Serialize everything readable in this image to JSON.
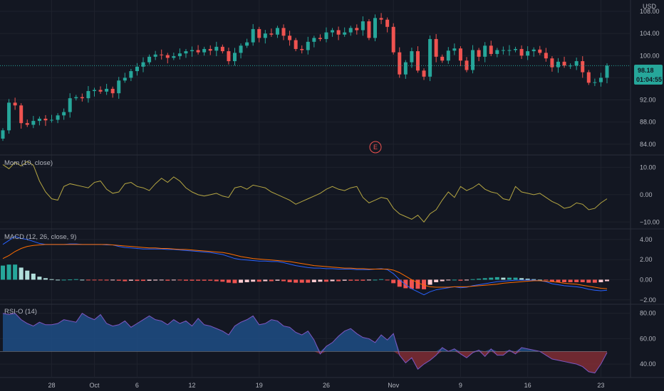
{
  "currency": "USD",
  "price_badge": {
    "price": "98.18",
    "countdown": "01:04:55",
    "color": "#26a69a"
  },
  "earnings_marker": "E",
  "colors": {
    "up": "#26a69a",
    "down": "#ef5350",
    "mom": "#b5a642",
    "macd": "#2962ff",
    "signal": "#ff6d00",
    "rsi_line": "#7e57c2",
    "rsi_up_fill": "#1e4a80",
    "rsi_down_fill": "#7a2b33"
  },
  "chart_data": [
    {
      "type": "candlestick",
      "name": "price",
      "y_ticks": [
        "108.00",
        "104.00",
        "100.00",
        "96.00",
        "92.00",
        "88.00",
        "84.00"
      ],
      "y_tick_values": [
        108,
        104,
        100,
        96,
        92,
        88,
        84
      ],
      "ylim": [
        82.3,
        109.8
      ],
      "last_price": 98.18,
      "x_ticks": [
        "28",
        "Oct",
        "6",
        "12",
        "19",
        "26",
        "Nov",
        "9",
        "16",
        "23"
      ],
      "x_tick_index": [
        8,
        15,
        22,
        31,
        42,
        53,
        64,
        75,
        86,
        98
      ],
      "closes": [
        86.5,
        91.5,
        91.0,
        87.8,
        87.5,
        88.2,
        88.6,
        88.3,
        88.4,
        89.2,
        89.8,
        92.3,
        92.5,
        92.3,
        93.6,
        93.8,
        93.5,
        94.0,
        93.2,
        95.5,
        96.0,
        97.2,
        98.0,
        98.8,
        99.8,
        100.2,
        100.1,
        99.6,
        99.9,
        100.4,
        100.8,
        101.0,
        100.6,
        101.2,
        100.9,
        101.6,
        100.8,
        99.0,
        100.5,
        101.8,
        102.4,
        104.8,
        103.2,
        104.0,
        103.8,
        105.0,
        103.6,
        102.8,
        101.2,
        101.0,
        102.5,
        103.2,
        103.0,
        104.2,
        104.6,
        103.8,
        104.2,
        105.0,
        104.6,
        106.2,
        103.2,
        106.8,
        106.5,
        105.2,
        100.6,
        96.6,
        98.8,
        100.8,
        97.3,
        96.2,
        103.0,
        99.8,
        99.1,
        100.9,
        101.3,
        99.1,
        97.4,
        101.0,
        99.8,
        101.8,
        100.3,
        101.0,
        101.0,
        101.0,
        101.2,
        100.0,
        100.8,
        101.1,
        100.5,
        99.5,
        97.9,
        98.9,
        98.2,
        98.2,
        99.0,
        97.0,
        95.1,
        95.2,
        96.0,
        98.2
      ]
    },
    {
      "type": "line",
      "name": "Mom (10, close)",
      "title": "Mom (10, close)",
      "y_ticks": [
        "10.00",
        "0.00",
        "−10.00"
      ],
      "y_tick_values": [
        10,
        0,
        -10
      ],
      "ylim": [
        -12,
        14
      ],
      "values": [
        11.0,
        9.5,
        11.8,
        10.5,
        12.2,
        10.8,
        5.0,
        1.0,
        -1.5,
        -2.0,
        3.0,
        4.0,
        3.5,
        3.0,
        2.5,
        4.5,
        5.0,
        2.0,
        0.5,
        1.0,
        4.0,
        4.5,
        3.0,
        2.5,
        1.5,
        4.0,
        6.0,
        4.5,
        6.5,
        5.0,
        2.5,
        1.0,
        0.0,
        -0.5,
        0.0,
        0.5,
        -0.5,
        -1.0,
        2.5,
        3.0,
        2.0,
        3.5,
        3.0,
        2.5,
        1.0,
        0.0,
        -1.0,
        -2.0,
        -3.5,
        -2.5,
        -1.5,
        -0.5,
        0.5,
        2.0,
        3.0,
        2.0,
        1.5,
        2.5,
        3.0,
        -1.0,
        -3.0,
        -2.0,
        -1.0,
        -1.5,
        -5.0,
        -7.0,
        -8.0,
        -9.0,
        -7.5,
        -10.0,
        -7.0,
        -5.5,
        -2.0,
        1.0,
        -1.0,
        3.0,
        1.5,
        2.5,
        4.0,
        2.0,
        1.0,
        0.5,
        -1.5,
        -2.0,
        3.0,
        1.0,
        0.5,
        0.0,
        0.5,
        -1.0,
        -2.5,
        -3.5,
        -5.0,
        -4.5,
        -3.0,
        -3.5,
        -5.5,
        -5.0,
        -3.0,
        -1.5
      ]
    },
    {
      "type": "line+histogram",
      "name": "MACD (12, 26, close, 9)",
      "title": "MACD (12, 26, close, 9)",
      "y_ticks": [
        "4.00",
        "2.00",
        "0.00",
        "−2.00"
      ],
      "y_tick_values": [
        4,
        2,
        0,
        -2
      ],
      "ylim": [
        -2.3,
        4.9
      ],
      "series": [
        {
          "name": "MACD",
          "values": [
            3.5,
            3.9,
            4.3,
            4.1,
            4.0,
            3.8,
            3.6,
            3.5,
            3.5,
            3.5,
            3.5,
            3.55,
            3.55,
            3.5,
            3.5,
            3.5,
            3.5,
            3.45,
            3.45,
            3.3,
            3.2,
            3.15,
            3.1,
            3.05,
            3.05,
            3.05,
            3.05,
            3.0,
            3.0,
            2.95,
            2.9,
            2.85,
            2.8,
            2.75,
            2.7,
            2.6,
            2.5,
            2.3,
            2.1,
            2.0,
            1.95,
            1.9,
            1.85,
            1.85,
            1.8,
            1.8,
            1.7,
            1.55,
            1.4,
            1.3,
            1.2,
            1.15,
            1.15,
            1.1,
            1.1,
            1.05,
            1.05,
            1.05,
            1.0,
            1.0,
            1.0,
            1.05,
            1.1,
            1.0,
            0.6,
            0.0,
            -0.5,
            -0.9,
            -1.2,
            -1.5,
            -1.2,
            -1.0,
            -0.9,
            -0.8,
            -0.7,
            -0.8,
            -0.75,
            -0.6,
            -0.5,
            -0.4,
            -0.3,
            -0.2,
            -0.15,
            -0.1,
            -0.05,
            -0.05,
            -0.05,
            -0.05,
            -0.1,
            -0.2,
            -0.4,
            -0.5,
            -0.6,
            -0.65,
            -0.7,
            -0.8,
            -0.95,
            -1.05,
            -1.1,
            -1.05
          ]
        },
        {
          "name": "Signal",
          "values": [
            2.1,
            2.4,
            2.8,
            3.1,
            3.3,
            3.4,
            3.45,
            3.5,
            3.5,
            3.5,
            3.5,
            3.5,
            3.5,
            3.5,
            3.5,
            3.5,
            3.5,
            3.5,
            3.45,
            3.4,
            3.35,
            3.3,
            3.25,
            3.2,
            3.15,
            3.15,
            3.1,
            3.1,
            3.05,
            3.0,
            3.0,
            2.95,
            2.9,
            2.85,
            2.8,
            2.75,
            2.7,
            2.6,
            2.45,
            2.3,
            2.2,
            2.1,
            2.05,
            2.0,
            1.95,
            1.9,
            1.85,
            1.8,
            1.7,
            1.6,
            1.5,
            1.4,
            1.35,
            1.3,
            1.25,
            1.2,
            1.15,
            1.15,
            1.1,
            1.1,
            1.05,
            1.05,
            1.05,
            1.05,
            0.95,
            0.7,
            0.35,
            0.0,
            -0.3,
            -0.55,
            -0.7,
            -0.75,
            -0.75,
            -0.75,
            -0.7,
            -0.7,
            -0.7,
            -0.65,
            -0.6,
            -0.55,
            -0.5,
            -0.45,
            -0.35,
            -0.3,
            -0.25,
            -0.2,
            -0.15,
            -0.1,
            -0.1,
            -0.15,
            -0.2,
            -0.25,
            -0.35,
            -0.4,
            -0.45,
            -0.55,
            -0.65,
            -0.75,
            -0.85,
            -0.9
          ]
        },
        {
          "name": "Histogram",
          "values": [
            1.4,
            1.5,
            1.5,
            1.2,
            0.9,
            0.6,
            0.3,
            0.15,
            0.05,
            0.0,
            0.0,
            0.02,
            0.05,
            0.0,
            -0.02,
            -0.02,
            -0.05,
            -0.08,
            -0.05,
            -0.1,
            -0.15,
            -0.1,
            -0.12,
            -0.12,
            -0.1,
            -0.08,
            -0.05,
            -0.1,
            -0.05,
            -0.05,
            -0.1,
            -0.1,
            -0.1,
            -0.1,
            -0.1,
            -0.15,
            -0.2,
            -0.3,
            -0.35,
            -0.3,
            -0.25,
            -0.2,
            -0.2,
            -0.15,
            -0.15,
            -0.1,
            -0.15,
            -0.25,
            -0.3,
            -0.3,
            -0.3,
            -0.25,
            -0.2,
            -0.2,
            -0.15,
            -0.15,
            -0.1,
            -0.1,
            -0.1,
            -0.1,
            -0.05,
            0.0,
            0.05,
            -0.05,
            -0.35,
            -0.7,
            -0.85,
            -0.9,
            -0.9,
            -0.95,
            -0.5,
            -0.25,
            -0.15,
            -0.05,
            0.0,
            -0.1,
            -0.05,
            0.05,
            0.1,
            0.15,
            0.2,
            0.25,
            0.2,
            0.2,
            0.2,
            0.15,
            0.1,
            0.05,
            0.0,
            -0.05,
            -0.2,
            -0.25,
            -0.25,
            -0.25,
            -0.25,
            -0.25,
            -0.3,
            -0.3,
            -0.25,
            -0.15
          ]
        }
      ]
    },
    {
      "type": "area",
      "name": "RSI-O (14)",
      "title": "RSI-O (14)",
      "y_ticks": [
        "80.00",
        "60.00",
        "40.00"
      ],
      "y_tick_values": [
        80,
        60,
        40
      ],
      "ylim": [
        30,
        86
      ],
      "baseline": 50,
      "values": [
        80,
        79,
        80,
        75,
        72,
        70,
        73,
        71,
        71,
        72,
        75,
        74,
        73,
        80,
        77,
        75,
        79,
        72,
        70,
        71,
        74,
        69,
        72,
        75,
        78,
        75,
        74,
        71,
        75,
        72,
        74,
        70,
        76,
        71,
        70,
        68,
        66,
        63,
        70,
        73,
        75,
        78,
        71,
        72,
        75,
        74,
        70,
        69,
        65,
        63,
        66,
        59,
        48,
        54,
        57,
        62,
        66,
        68,
        64,
        61,
        60,
        57,
        63,
        59,
        64,
        47,
        41,
        45,
        36,
        40,
        43,
        47,
        53,
        50,
        52,
        48,
        45,
        49,
        51,
        46,
        52,
        47,
        47,
        51,
        48,
        53,
        52,
        51,
        50,
        47,
        44,
        43,
        42,
        41,
        40,
        38,
        34,
        33,
        40,
        49
      ]
    }
  ]
}
